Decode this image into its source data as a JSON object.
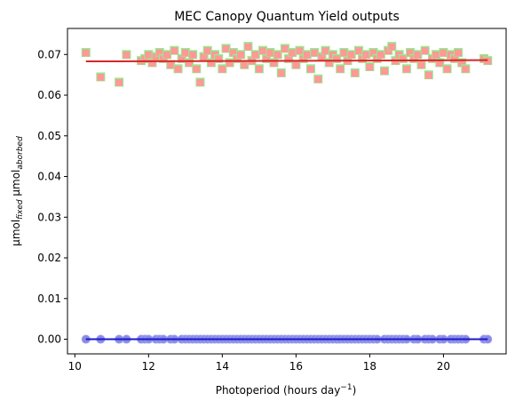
{
  "chart_data": {
    "type": "scatter",
    "title": "MEC Canopy Quantum Yield outputs",
    "xlabel": {
      "base": "Photoperiod (hours day",
      "sup": "−1",
      "tail": ")"
    },
    "ylabel": {
      "p1": "μmol",
      "sub1": "fixed",
      "p2": " μmol",
      "sub2": "aborbed"
    },
    "xlim": [
      9.8,
      21.7
    ],
    "ylim": [
      -0.0036,
      0.0764
    ],
    "x_ticks": [
      10,
      12,
      14,
      16,
      18,
      20
    ],
    "x_tick_labels": [
      "10",
      "12",
      "14",
      "16",
      "18",
      "20"
    ],
    "y_ticks": [
      0.0,
      0.01,
      0.02,
      0.03,
      0.04,
      0.05,
      0.06,
      0.07
    ],
    "y_tick_labels": [
      "0.00",
      "0.01",
      "0.02",
      "0.03",
      "0.04",
      "0.05",
      "0.06",
      "0.07"
    ],
    "grid": false,
    "legend": "none",
    "colors": {
      "square_under": "#90ee90",
      "square_over": "#ff9896",
      "circle_under": "#9a9aee",
      "circle_over": "#8a8ae6",
      "trend_upper": "#d62728",
      "trend_lower": "#1a1acc"
    },
    "series": [
      {
        "marker": "square",
        "x": [
          10.3,
          10.7,
          11.2,
          11.4,
          11.8,
          11.9,
          12.0,
          12.1,
          12.2,
          12.3,
          12.4,
          12.5,
          12.6,
          12.7,
          12.8,
          12.9,
          13.0,
          13.1,
          13.2,
          13.3,
          13.4,
          13.5,
          13.6,
          13.7,
          13.8,
          13.9,
          14.0,
          14.1,
          14.2,
          14.3,
          14.4,
          14.5,
          14.6,
          14.7,
          14.8,
          14.9,
          15.0,
          15.1,
          15.2,
          15.3,
          15.4,
          15.5,
          15.6,
          15.7,
          15.8,
          15.9,
          16.0,
          16.1,
          16.2,
          16.3,
          16.4,
          16.5,
          16.6,
          16.7,
          16.8,
          16.9,
          17.0,
          17.1,
          17.2,
          17.3,
          17.4,
          17.5,
          17.6,
          17.7,
          17.8,
          17.9,
          18.0,
          18.1,
          18.2,
          18.3,
          18.4,
          18.5,
          18.6,
          18.7,
          18.8,
          18.9,
          19.0,
          19.1,
          19.2,
          19.3,
          19.4,
          19.5,
          19.6,
          19.7,
          19.8,
          19.9,
          20.0,
          20.1,
          20.2,
          20.3,
          20.4,
          20.5,
          20.6,
          21.1,
          21.2
        ],
        "y": [
          0.0705,
          0.0645,
          0.0632,
          0.07,
          0.0685,
          0.069,
          0.07,
          0.068,
          0.0695,
          0.0705,
          0.069,
          0.07,
          0.0675,
          0.071,
          0.0665,
          0.069,
          0.0705,
          0.068,
          0.07,
          0.0665,
          0.0632,
          0.0695,
          0.071,
          0.068,
          0.07,
          0.069,
          0.0665,
          0.0715,
          0.068,
          0.0705,
          0.069,
          0.07,
          0.0675,
          0.072,
          0.0685,
          0.07,
          0.0665,
          0.071,
          0.069,
          0.0705,
          0.068,
          0.07,
          0.0655,
          0.0715,
          0.069,
          0.0705,
          0.0675,
          0.071,
          0.069,
          0.07,
          0.0665,
          0.0705,
          0.064,
          0.0695,
          0.071,
          0.068,
          0.07,
          0.069,
          0.0665,
          0.0705,
          0.0685,
          0.07,
          0.0655,
          0.071,
          0.069,
          0.07,
          0.067,
          0.0705,
          0.069,
          0.07,
          0.066,
          0.071,
          0.072,
          0.0685,
          0.07,
          0.069,
          0.0665,
          0.0705,
          0.069,
          0.07,
          0.0675,
          0.071,
          0.065,
          0.069,
          0.07,
          0.068,
          0.0705,
          0.0665,
          0.07,
          0.069,
          0.0705,
          0.068,
          0.0665,
          0.069,
          0.0685
        ]
      },
      {
        "marker": "circle",
        "x": [
          10.3,
          10.7,
          11.2,
          11.4,
          11.8,
          11.9,
          12.0,
          12.2,
          12.3,
          12.4,
          12.6,
          12.7,
          12.9,
          13.0,
          13.1,
          13.2,
          13.3,
          13.4,
          13.5,
          13.6,
          13.7,
          13.8,
          13.9,
          14.0,
          14.1,
          14.2,
          14.3,
          14.4,
          14.5,
          14.6,
          14.7,
          14.8,
          14.9,
          15.0,
          15.1,
          15.2,
          15.3,
          15.4,
          15.5,
          15.6,
          15.7,
          15.8,
          15.9,
          16.0,
          16.1,
          16.2,
          16.3,
          16.4,
          16.5,
          16.6,
          16.7,
          16.8,
          16.9,
          17.0,
          17.1,
          17.2,
          17.3,
          17.4,
          17.5,
          17.6,
          17.7,
          17.8,
          17.9,
          18.0,
          18.1,
          18.2,
          18.4,
          18.5,
          18.6,
          18.7,
          18.8,
          18.9,
          19.0,
          19.2,
          19.3,
          19.5,
          19.6,
          19.7,
          19.9,
          20.0,
          20.2,
          20.3,
          20.4,
          20.5,
          20.6,
          21.1,
          21.2
        ],
        "y": [
          0,
          0,
          0,
          0,
          0,
          0,
          0,
          0,
          0,
          0,
          0,
          0,
          0,
          0,
          0,
          0,
          0,
          0,
          0,
          0,
          0,
          0,
          0,
          0,
          0,
          0,
          0,
          0,
          0,
          0,
          0,
          0,
          0,
          0,
          0,
          0,
          0,
          0,
          0,
          0,
          0,
          0,
          0,
          0,
          0,
          0,
          0,
          0,
          0,
          0,
          0,
          0,
          0,
          0,
          0,
          0,
          0,
          0,
          0,
          0,
          0,
          0,
          0,
          0,
          0,
          0,
          0,
          0,
          0,
          0,
          0,
          0,
          0,
          0,
          0,
          0,
          0,
          0,
          0,
          0,
          0,
          0,
          0,
          0,
          0,
          0,
          0
        ]
      }
    ],
    "trend_lines": [
      {
        "x": [
          10.3,
          21.2
        ],
        "y": [
          0.0683,
          0.0686
        ],
        "color": "upper"
      },
      {
        "x": [
          10.3,
          21.2
        ],
        "y": [
          0.0,
          0.0
        ],
        "color": "lower"
      }
    ]
  }
}
